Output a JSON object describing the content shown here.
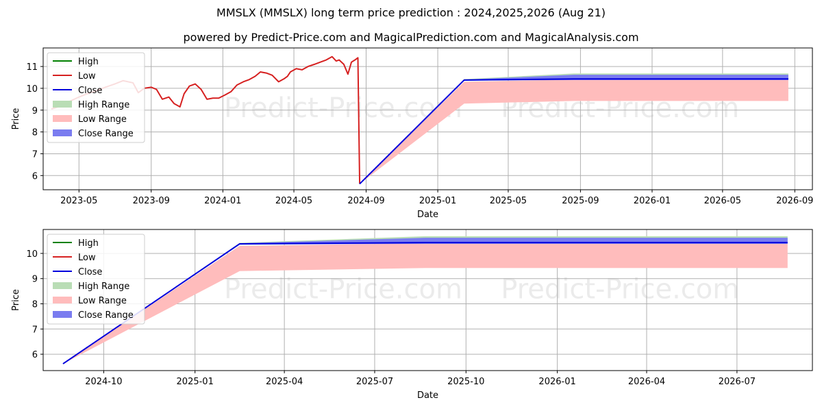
{
  "header": {
    "title": "MMSLX (MMSLX) long term price prediction : 2024,2025,2026 (Aug 21)",
    "subtitle": "powered by Predict-Price.com and MagicalPrediction.com and MagicalAnalysis.com"
  },
  "watermark": "Predict-Price.com",
  "colors": {
    "high": "#008000",
    "low": "#d62020",
    "close": "#0000dd",
    "high_range": "#b9ddb5",
    "low_range": "#ffbcbc",
    "close_range": "#7a7cf0",
    "grid": "#b0b0b0"
  },
  "chart_data": [
    {
      "type": "line",
      "xlabel": "Date",
      "ylabel": "Price",
      "x_range": [
        "2023-03-01",
        "2026-10-01"
      ],
      "ylim": [
        5.35,
        11.85
      ],
      "x_ticks": [
        {
          "date": "2023-05-01",
          "label": "2023-05"
        },
        {
          "date": "2023-09-01",
          "label": "2023-09"
        },
        {
          "date": "2024-01-01",
          "label": "2024-01"
        },
        {
          "date": "2024-05-01",
          "label": "2024-05"
        },
        {
          "date": "2024-09-01",
          "label": "2024-09"
        },
        {
          "date": "2025-01-01",
          "label": "2025-01"
        },
        {
          "date": "2025-05-01",
          "label": "2025-05"
        },
        {
          "date": "2025-09-01",
          "label": "2025-09"
        },
        {
          "date": "2026-01-01",
          "label": "2026-01"
        },
        {
          "date": "2026-05-01",
          "label": "2026-05"
        },
        {
          "date": "2026-09-01",
          "label": "2026-09"
        }
      ],
      "y_ticks": [
        6,
        7,
        8,
        9,
        10,
        11
      ],
      "legend": [
        "High",
        "Low",
        "Close",
        "High Range",
        "Low Range",
        "Close Range"
      ],
      "legend_position": "upper-left",
      "grid": true,
      "history": {
        "dates": [
          "2023-03-15",
          "2023-04-01",
          "2023-04-15",
          "2023-05-01",
          "2023-05-15",
          "2023-06-01",
          "2023-06-15",
          "2023-07-01",
          "2023-07-15",
          "2023-08-01",
          "2023-08-10",
          "2023-08-20",
          "2023-09-01",
          "2023-09-10",
          "2023-09-20",
          "2023-10-01",
          "2023-10-10",
          "2023-10-20",
          "2023-10-27",
          "2023-11-05",
          "2023-11-15",
          "2023-11-25",
          "2023-12-05",
          "2023-12-15",
          "2023-12-25",
          "2024-01-05",
          "2024-01-15",
          "2024-01-25",
          "2024-02-05",
          "2024-02-15",
          "2024-02-25",
          "2024-03-05",
          "2024-03-15",
          "2024-03-25",
          "2024-04-05",
          "2024-04-15",
          "2024-04-20",
          "2024-04-25",
          "2024-05-05",
          "2024-05-15",
          "2024-05-25",
          "2024-06-05",
          "2024-06-15",
          "2024-06-25",
          "2024-07-05",
          "2024-07-12",
          "2024-07-17",
          "2024-07-25",
          "2024-08-01",
          "2024-08-07",
          "2024-08-13",
          "2024-08-18",
          "2024-08-21"
        ],
        "values": [
          9.05,
          9.2,
          9.4,
          9.6,
          9.75,
          9.9,
          10.05,
          10.2,
          10.35,
          10.25,
          9.8,
          10.0,
          10.05,
          9.95,
          9.5,
          9.6,
          9.3,
          9.15,
          9.75,
          10.1,
          10.2,
          9.95,
          9.5,
          9.55,
          9.55,
          9.7,
          9.85,
          10.15,
          10.3,
          10.4,
          10.55,
          10.75,
          10.7,
          10.6,
          10.3,
          10.45,
          10.55,
          10.75,
          10.9,
          10.85,
          11.0,
          11.1,
          11.2,
          11.3,
          11.45,
          11.25,
          11.3,
          11.1,
          10.65,
          11.2,
          11.3,
          11.4,
          5.62
        ]
      },
      "forecast": {
        "dates": [
          "2024-08-21",
          "2025-02-15",
          "2025-08-21",
          "2026-08-21"
        ],
        "close": [
          5.62,
          10.38,
          10.43,
          10.43
        ],
        "high_range": {
          "upper": [
            5.62,
            10.42,
            10.68,
            10.68
          ],
          "lower": [
            5.62,
            10.35,
            10.4,
            10.4
          ]
        },
        "low_range": {
          "upper": [
            5.62,
            10.3,
            10.4,
            10.4
          ],
          "lower": [
            5.62,
            9.3,
            9.42,
            9.42
          ]
        },
        "close_range": {
          "upper": [
            5.62,
            10.4,
            10.62,
            10.62
          ],
          "lower": [
            5.62,
            10.35,
            10.38,
            10.38
          ]
        }
      }
    },
    {
      "type": "line",
      "xlabel": "Date",
      "ylabel": "Price",
      "x_range": [
        "2024-08-01",
        "2026-09-15"
      ],
      "ylim": [
        5.35,
        10.95
      ],
      "x_ticks": [
        {
          "date": "2024-10-01",
          "label": "2024-10"
        },
        {
          "date": "2025-01-01",
          "label": "2025-01"
        },
        {
          "date": "2025-04-01",
          "label": "2025-04"
        },
        {
          "date": "2025-07-01",
          "label": "2025-07"
        },
        {
          "date": "2025-10-01",
          "label": "2025-10"
        },
        {
          "date": "2026-01-01",
          "label": "2026-01"
        },
        {
          "date": "2026-04-01",
          "label": "2026-04"
        },
        {
          "date": "2026-07-01",
          "label": "2026-07"
        }
      ],
      "y_ticks": [
        6,
        7,
        8,
        9,
        10
      ],
      "legend": [
        "High",
        "Low",
        "Close",
        "High Range",
        "Low Range",
        "Close Range"
      ],
      "legend_position": "upper-left",
      "grid": true,
      "forecast": {
        "dates": [
          "2024-08-21",
          "2025-02-15",
          "2025-08-21",
          "2026-08-21"
        ],
        "close": [
          5.62,
          10.38,
          10.43,
          10.43
        ],
        "high_range": {
          "upper": [
            5.62,
            10.42,
            10.68,
            10.68
          ],
          "lower": [
            5.62,
            10.35,
            10.4,
            10.4
          ]
        },
        "low_range": {
          "upper": [
            5.62,
            10.3,
            10.4,
            10.4
          ],
          "lower": [
            5.62,
            9.3,
            9.42,
            9.42
          ]
        },
        "close_range": {
          "upper": [
            5.62,
            10.4,
            10.62,
            10.62
          ],
          "lower": [
            5.62,
            10.35,
            10.38,
            10.38
          ]
        }
      }
    }
  ]
}
